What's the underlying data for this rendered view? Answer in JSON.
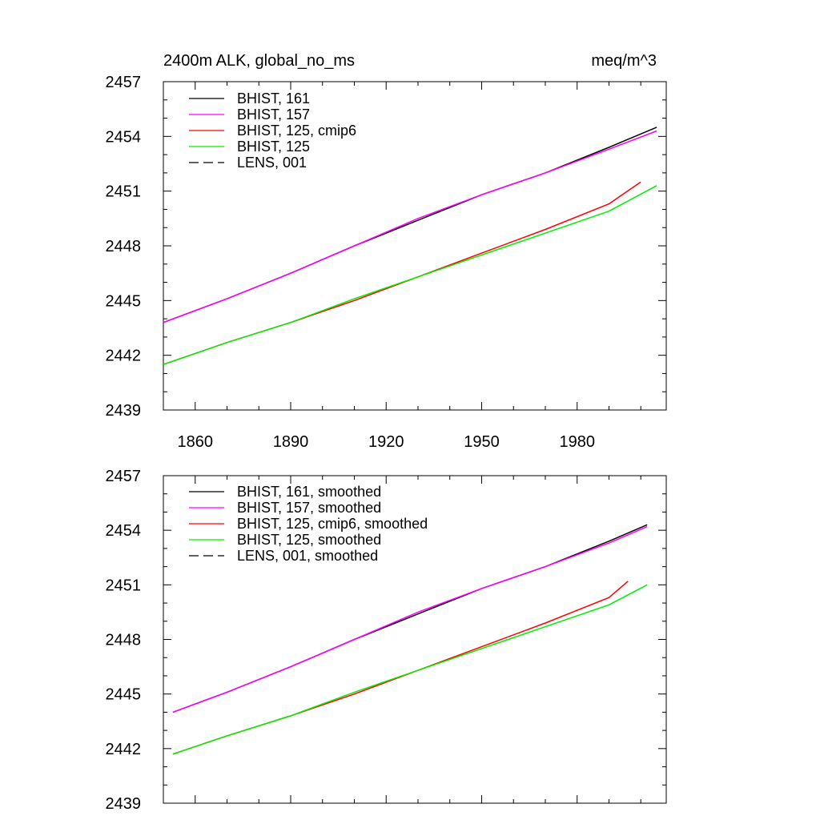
{
  "figure": {
    "title_left": "2400m ALK, global_no_ms",
    "title_right": "meq/m^3"
  },
  "chart_data": [
    {
      "type": "line",
      "title": "2400m ALK, global_no_ms",
      "units": "meq/m^3",
      "xlim": [
        1850,
        2008
      ],
      "ylim": [
        2439,
        2457
      ],
      "x_ticks": [
        1860,
        1890,
        1920,
        1950,
        1980
      ],
      "x_ticklabels": [
        "1860",
        "1890",
        "1920",
        "1950",
        "1980"
      ],
      "y_ticks": [
        2439,
        2442,
        2445,
        2448,
        2451,
        2454,
        2457
      ],
      "y_ticklabels": [
        "2439",
        "2442",
        "2445",
        "2448",
        "2451",
        "2454",
        "2457"
      ],
      "legend_position": "top-left",
      "series": [
        {
          "name": "BHIST, 161",
          "color": "#000000",
          "dash": "solid",
          "x": [
            1850,
            1870,
            1890,
            1910,
            1930,
            1950,
            1970,
            1990,
            2005
          ],
          "y": [
            2443.8,
            2445.1,
            2446.5,
            2448.0,
            2449.4,
            2450.8,
            2452.0,
            2453.4,
            2454.5
          ]
        },
        {
          "name": "BHIST, 157",
          "color": "#ff00ff",
          "dash": "solid",
          "x": [
            1850,
            1870,
            1890,
            1910,
            1930,
            1950,
            1970,
            1990,
            2005
          ],
          "y": [
            2443.8,
            2445.1,
            2446.5,
            2448.0,
            2449.5,
            2450.8,
            2452.0,
            2453.3,
            2454.3
          ]
        },
        {
          "name": "BHIST, 125, cmip6",
          "color": "#ff0000",
          "dash": "solid",
          "x": [
            1850,
            1870,
            1890,
            1910,
            1930,
            1950,
            1970,
            1990,
            2000
          ],
          "y": [
            2441.5,
            2442.7,
            2443.8,
            2445.0,
            2446.3,
            2447.6,
            2448.9,
            2450.3,
            2451.5
          ]
        },
        {
          "name": "BHIST, 125",
          "color": "#00ee00",
          "dash": "solid",
          "x": [
            1850,
            1870,
            1890,
            1910,
            1930,
            1950,
            1970,
            1990,
            2005
          ],
          "y": [
            2441.5,
            2442.7,
            2443.8,
            2445.1,
            2446.3,
            2447.5,
            2448.7,
            2449.9,
            2451.3
          ]
        },
        {
          "name": "LENS, 001",
          "color": "#000000",
          "dash": "dashed",
          "x": [],
          "y": []
        }
      ]
    },
    {
      "type": "line",
      "title": "",
      "xlim": [
        1850,
        2008
      ],
      "ylim": [
        2439,
        2457
      ],
      "x_ticks": [
        1860,
        1890,
        1920,
        1950,
        1980
      ],
      "x_ticklabels": [],
      "y_ticks": [
        2439,
        2442,
        2445,
        2448,
        2451,
        2454,
        2457
      ],
      "y_ticklabels": [
        "2439",
        "2442",
        "2445",
        "2448",
        "2451",
        "2454",
        "2457"
      ],
      "legend_position": "top-left",
      "series": [
        {
          "name": "BHIST, 161, smoothed",
          "color": "#000000",
          "dash": "solid",
          "x": [
            1853,
            1870,
            1890,
            1910,
            1930,
            1950,
            1970,
            1990,
            2002
          ],
          "y": [
            2444.0,
            2445.1,
            2446.5,
            2448.0,
            2449.4,
            2450.8,
            2452.0,
            2453.4,
            2454.3
          ]
        },
        {
          "name": "BHIST, 157, smoothed",
          "color": "#ff00ff",
          "dash": "solid",
          "x": [
            1853,
            1870,
            1890,
            1910,
            1930,
            1950,
            1970,
            1990,
            2002
          ],
          "y": [
            2444.0,
            2445.1,
            2446.5,
            2448.0,
            2449.5,
            2450.8,
            2452.0,
            2453.3,
            2454.2
          ]
        },
        {
          "name": "BHIST, 125, cmip6, smoothed",
          "color": "#ff0000",
          "dash": "solid",
          "x": [
            1853,
            1870,
            1890,
            1910,
            1930,
            1950,
            1970,
            1990,
            1996
          ],
          "y": [
            2441.7,
            2442.7,
            2443.8,
            2445.0,
            2446.3,
            2447.6,
            2448.9,
            2450.3,
            2451.2
          ]
        },
        {
          "name": "BHIST, 125, smoothed",
          "color": "#00ee00",
          "dash": "solid",
          "x": [
            1853,
            1870,
            1890,
            1910,
            1930,
            1950,
            1970,
            1990,
            2002
          ],
          "y": [
            2441.7,
            2442.7,
            2443.8,
            2445.1,
            2446.3,
            2447.5,
            2448.7,
            2449.9,
            2451.0
          ]
        },
        {
          "name": "LENS, 001, smoothed",
          "color": "#000000",
          "dash": "dashed",
          "x": [],
          "y": []
        }
      ]
    }
  ]
}
